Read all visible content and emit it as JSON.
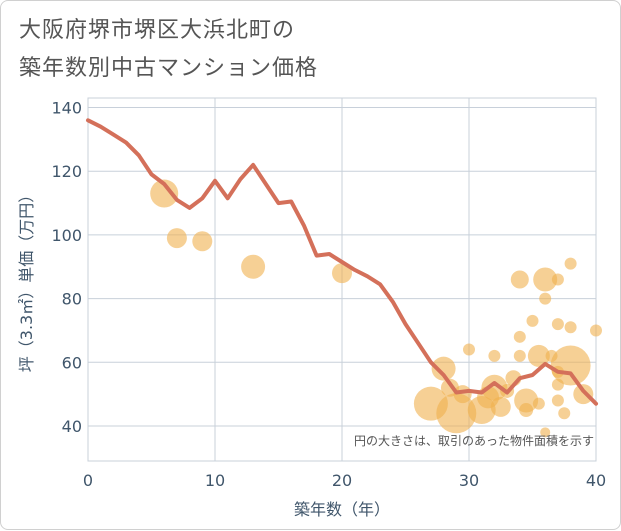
{
  "title_line1": "大阪府堺市堺区大浜北町の",
  "title_line2": "築年数別中古マンション価格",
  "chart_data": {
    "type": "scatter+line",
    "xlabel": "築年数（年）",
    "ylabel": "坪（3.3㎡）単価（万円）",
    "xlim": [
      0,
      40
    ],
    "ylim": [
      29,
      143
    ],
    "x_ticks": [
      0,
      10,
      20,
      30,
      40
    ],
    "y_ticks": [
      40,
      60,
      80,
      100,
      120,
      140
    ],
    "grid": true,
    "annotation": "円の大きさは、取引のあった物件面積を示す",
    "colors": {
      "line": "#d4705a",
      "bubble": "#f0b04e",
      "grid": "#c8d0da",
      "axis_text": "#40566b"
    },
    "line": {
      "x": [
        0,
        1,
        2,
        3,
        4,
        5,
        6,
        7,
        8,
        9,
        10,
        11,
        12,
        13,
        14,
        15,
        16,
        17,
        18,
        19,
        20,
        21,
        22,
        23,
        24,
        25,
        26,
        27,
        28,
        29,
        30,
        31,
        32,
        33,
        34,
        35,
        36,
        37,
        38,
        39,
        40
      ],
      "y": [
        136,
        134,
        131.5,
        129,
        125,
        119,
        116,
        111,
        108.5,
        111.5,
        117,
        111.5,
        117.5,
        122,
        116,
        110,
        110.5,
        103,
        93.5,
        94,
        91.5,
        89,
        87,
        84.5,
        79,
        72,
        66,
        60,
        56,
        50.5,
        51,
        50.5,
        53.5,
        50.5,
        55,
        56,
        59.5,
        57,
        56.5,
        51,
        47
      ]
    },
    "bubbles": [
      {
        "x": 6,
        "y": 113,
        "size": 14
      },
      {
        "x": 7,
        "y": 99,
        "size": 10
      },
      {
        "x": 9,
        "y": 98,
        "size": 10
      },
      {
        "x": 13,
        "y": 90,
        "size": 12
      },
      {
        "x": 20,
        "y": 88,
        "size": 10
      },
      {
        "x": 27,
        "y": 47,
        "size": 17
      },
      {
        "x": 28,
        "y": 58,
        "size": 12
      },
      {
        "x": 28.5,
        "y": 52,
        "size": 9
      },
      {
        "x": 29,
        "y": 44,
        "size": 20
      },
      {
        "x": 29.5,
        "y": 50,
        "size": 9
      },
      {
        "x": 30,
        "y": 64,
        "size": 6
      },
      {
        "x": 31,
        "y": 45,
        "size": 14
      },
      {
        "x": 31.5,
        "y": 49,
        "size": 11
      },
      {
        "x": 32,
        "y": 52,
        "size": 13
      },
      {
        "x": 32,
        "y": 62,
        "size": 6
      },
      {
        "x": 32.5,
        "y": 46,
        "size": 10
      },
      {
        "x": 33,
        "y": 51,
        "size": 7
      },
      {
        "x": 33.5,
        "y": 55,
        "size": 8
      },
      {
        "x": 34,
        "y": 86,
        "size": 9
      },
      {
        "x": 34,
        "y": 68,
        "size": 6
      },
      {
        "x": 34,
        "y": 62,
        "size": 6
      },
      {
        "x": 34.5,
        "y": 48,
        "size": 12
      },
      {
        "x": 34.5,
        "y": 45,
        "size": 7
      },
      {
        "x": 35,
        "y": 73,
        "size": 6
      },
      {
        "x": 35.5,
        "y": 62,
        "size": 11
      },
      {
        "x": 35.5,
        "y": 47,
        "size": 6
      },
      {
        "x": 36,
        "y": 86,
        "size": 12
      },
      {
        "x": 36,
        "y": 80,
        "size": 6
      },
      {
        "x": 36,
        "y": 38,
        "size": 5
      },
      {
        "x": 36.5,
        "y": 62,
        "size": 6
      },
      {
        "x": 37,
        "y": 86,
        "size": 6
      },
      {
        "x": 37,
        "y": 72,
        "size": 6
      },
      {
        "x": 37,
        "y": 57,
        "size": 6
      },
      {
        "x": 37,
        "y": 53,
        "size": 6
      },
      {
        "x": 37,
        "y": 48,
        "size": 6
      },
      {
        "x": 37.5,
        "y": 44,
        "size": 6
      },
      {
        "x": 38,
        "y": 91,
        "size": 6
      },
      {
        "x": 38,
        "y": 71,
        "size": 6
      },
      {
        "x": 38,
        "y": 59,
        "size": 20
      },
      {
        "x": 39,
        "y": 50,
        "size": 10
      },
      {
        "x": 40,
        "y": 70,
        "size": 6
      }
    ]
  }
}
